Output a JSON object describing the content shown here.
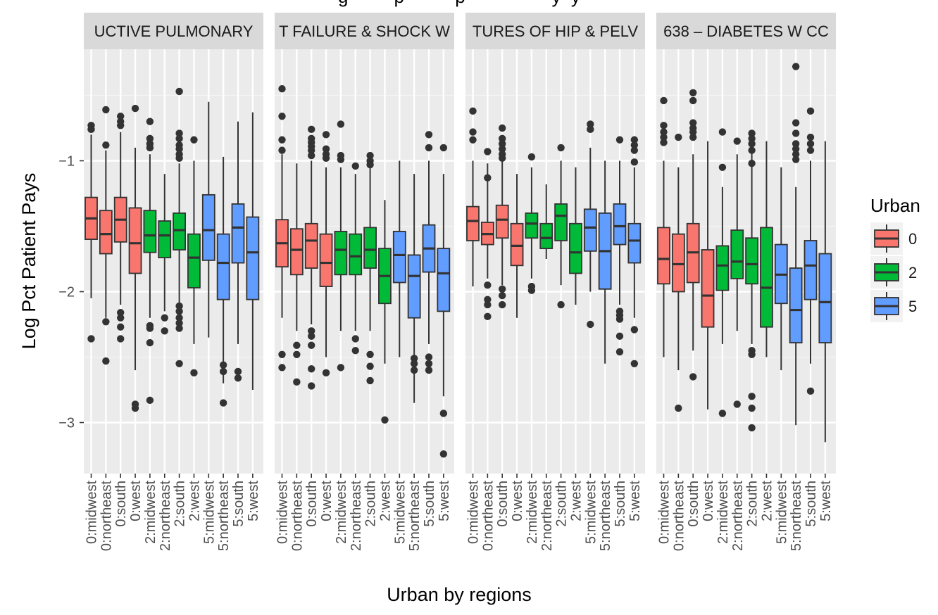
{
  "chart_data": {
    "type": "boxplot",
    "title": "g         p          p                 y  y",
    "xlabel": "Urban by regions",
    "ylabel": "Log Pct Patient Pays",
    "y_ticks": [
      -1,
      -2,
      -3
    ],
    "y_tick_labels": [
      "−1",
      "−2",
      "−3"
    ],
    "ylim": [
      -3.4,
      -0.2
    ],
    "grid": true,
    "legend": {
      "title": "Urban",
      "position": "right",
      "entries": [
        {
          "label": "0",
          "color": "#f8766d"
        },
        {
          "label": "2",
          "color": "#00ba38"
        },
        {
          "label": "5",
          "color": "#619cff"
        }
      ]
    },
    "categories": [
      "0:midwest",
      "0:northeast",
      "0:south",
      "0:west",
      "2:midwest",
      "2:northeast",
      "2:south",
      "2:west",
      "5:midwest",
      "5:northeast",
      "5:south",
      "5:west"
    ],
    "category_urban": [
      "0",
      "0",
      "0",
      "0",
      "2",
      "2",
      "2",
      "2",
      "5",
      "5",
      "5",
      "5"
    ],
    "facets": [
      {
        "label": "UCTIVE PULMONARY",
        "boxes": [
          {
            "lw": -2.05,
            "q1": -1.6,
            "med": -1.44,
            "q3": -1.28,
            "uw": -0.8,
            "out": [
              -0.73,
              -0.76,
              -2.36
            ]
          },
          {
            "lw": -2.2,
            "q1": -1.71,
            "med": -1.56,
            "q3": -1.38,
            "uw": -0.92,
            "out": [
              -0.61,
              -0.88,
              -2.23,
              -2.53
            ]
          },
          {
            "lw": -2.1,
            "q1": -1.62,
            "med": -1.45,
            "q3": -1.28,
            "uw": -0.78,
            "out": [
              -0.66,
              -0.7,
              -0.73,
              -2.16,
              -2.2,
              -2.27,
              -2.36
            ]
          },
          {
            "lw": -2.6,
            "q1": -1.86,
            "med": -1.63,
            "q3": -1.36,
            "uw": -0.9,
            "out": [
              -0.6,
              -2.86,
              -2.89
            ]
          },
          {
            "lw": -2.2,
            "q1": -1.7,
            "med": -1.57,
            "q3": -1.38,
            "uw": -0.95,
            "out": [
              -0.7,
              -0.83,
              -0.87,
              -0.9,
              -2.26,
              -2.28,
              -2.39,
              -2.83
            ]
          },
          {
            "lw": -2.15,
            "q1": -1.74,
            "med": -1.57,
            "q3": -1.46,
            "uw": -1.1,
            "out": [
              -2.2,
              -2.3
            ]
          },
          {
            "lw": -2.1,
            "q1": -1.68,
            "med": -1.53,
            "q3": -1.4,
            "uw": -1.02,
            "out": [
              -0.47,
              -0.79,
              -0.83,
              -0.88,
              -0.91,
              -0.95,
              -0.98,
              -2.11,
              -2.15,
              -2.2,
              -2.24,
              -2.28,
              -2.55
            ]
          },
          {
            "lw": -2.4,
            "q1": -1.97,
            "med": -1.74,
            "q3": -1.56,
            "uw": -1.0,
            "out": [
              -0.84,
              -2.62
            ]
          },
          {
            "lw": -2.35,
            "q1": -1.76,
            "med": -1.53,
            "q3": -1.26,
            "uw": -0.55,
            "out": []
          },
          {
            "lw": -2.7,
            "q1": -2.06,
            "med": -1.78,
            "q3": -1.56,
            "uw": -0.97,
            "out": [
              -2.56,
              -2.61,
              -2.85
            ]
          },
          {
            "lw": -2.4,
            "q1": -1.78,
            "med": -1.51,
            "q3": -1.33,
            "uw": -0.7,
            "out": [
              -2.61,
              -2.66
            ]
          },
          {
            "lw": -2.75,
            "q1": -2.06,
            "med": -1.7,
            "q3": -1.43,
            "uw": -0.63,
            "out": []
          }
        ]
      },
      {
        "label": "T FAILURE & SHOCK W",
        "boxes": [
          {
            "lw": -2.2,
            "q1": -1.81,
            "med": -1.63,
            "q3": -1.45,
            "uw": -0.95,
            "out": [
              -0.45,
              -0.66,
              -0.84,
              -0.92,
              -2.48,
              -2.58
            ]
          },
          {
            "lw": -2.3,
            "q1": -1.87,
            "med": -1.68,
            "q3": -1.52,
            "uw": -1.02,
            "out": [
              -2.41,
              -2.48,
              -2.69
            ]
          },
          {
            "lw": -2.25,
            "q1": -1.82,
            "med": -1.61,
            "q3": -1.48,
            "uw": -1.0,
            "out": [
              -0.76,
              -0.83,
              -0.86,
              -0.89,
              -0.92,
              -0.96,
              -2.3,
              -2.34,
              -2.41,
              -2.59,
              -2.72
            ]
          },
          {
            "lw": -2.5,
            "q1": -1.96,
            "med": -1.78,
            "q3": -1.56,
            "uw": -1.05,
            "out": [
              -0.8,
              -0.91,
              -0.95,
              -0.98,
              -2.62
            ]
          },
          {
            "lw": -2.3,
            "q1": -1.87,
            "med": -1.68,
            "q3": -1.54,
            "uw": -1.05,
            "out": [
              -0.96,
              -0.99,
              -0.72,
              -2.58
            ]
          },
          {
            "lw": -2.3,
            "q1": -1.87,
            "med": -1.73,
            "q3": -1.56,
            "uw": -1.1,
            "out": [
              -1.04,
              -2.36,
              -2.45
            ]
          },
          {
            "lw": -2.3,
            "q1": -1.82,
            "med": -1.68,
            "q3": -1.51,
            "uw": -1.05,
            "out": [
              -0.96,
              -1.0,
              -1.03,
              -2.48,
              -2.57,
              -2.68
            ]
          },
          {
            "lw": -2.55,
            "q1": -2.09,
            "med": -1.88,
            "q3": -1.67,
            "uw": -1.3,
            "out": [
              -2.98
            ]
          },
          {
            "lw": -2.5,
            "q1": -1.93,
            "med": -1.72,
            "q3": -1.54,
            "uw": -1.0,
            "out": []
          },
          {
            "lw": -2.85,
            "q1": -2.2,
            "med": -1.88,
            "q3": -1.72,
            "uw": -1.1,
            "out": [
              -2.51,
              -2.55,
              -2.6
            ]
          },
          {
            "lw": -2.4,
            "q1": -1.85,
            "med": -1.67,
            "q3": -1.49,
            "uw": -1.0,
            "out": [
              -0.8,
              -0.9,
              -2.5,
              -2.55,
              -2.6
            ]
          },
          {
            "lw": -2.8,
            "q1": -2.15,
            "med": -1.86,
            "q3": -1.67,
            "uw": -1.1,
            "out": [
              -0.9,
              -2.93,
              -3.24
            ]
          }
        ]
      },
      {
        "label": "TURES OF HIP & PELV",
        "boxes": [
          {
            "lw": -1.96,
            "q1": -1.61,
            "med": -1.46,
            "q3": -1.35,
            "uw": -1.0,
            "out": [
              -0.62,
              -0.78,
              -0.84
            ]
          },
          {
            "lw": -1.9,
            "q1": -1.64,
            "med": -1.56,
            "q3": -1.47,
            "uw": -1.02,
            "out": [
              -0.93,
              -1.13,
              -1.95,
              -2.06,
              -2.1,
              -2.19
            ]
          },
          {
            "lw": -1.95,
            "q1": -1.59,
            "med": -1.45,
            "q3": -1.34,
            "uw": -1.0,
            "out": [
              -0.75,
              -0.83,
              -0.87,
              -0.91,
              -0.95,
              -0.98,
              -1.98,
              -2.03,
              -2.1
            ]
          },
          {
            "lw": -2.2,
            "q1": -1.8,
            "med": -1.65,
            "q3": -1.48,
            "uw": -1.1,
            "out": []
          },
          {
            "lw": -1.9,
            "q1": -1.59,
            "med": -1.48,
            "q3": -1.4,
            "uw": -1.05,
            "out": [
              -0.97,
              -1.96,
              -1.99
            ]
          },
          {
            "lw": -1.75,
            "q1": -1.67,
            "med": -1.59,
            "q3": -1.48,
            "uw": -1.18,
            "out": []
          },
          {
            "lw": -1.95,
            "q1": -1.61,
            "med": -1.42,
            "q3": -1.33,
            "uw": -1.0,
            "out": [
              -0.9,
              -2.1
            ]
          },
          {
            "lw": -2.1,
            "q1": -1.86,
            "med": -1.7,
            "q3": -1.48,
            "uw": -1.05,
            "out": []
          },
          {
            "lw": -2.0,
            "q1": -1.69,
            "med": -1.51,
            "q3": -1.37,
            "uw": -0.9,
            "out": [
              -0.72,
              -0.76,
              -2.25
            ]
          },
          {
            "lw": -2.55,
            "q1": -1.98,
            "med": -1.69,
            "q3": -1.4,
            "uw": -1.0,
            "out": []
          },
          {
            "lw": -2.1,
            "q1": -1.64,
            "med": -1.5,
            "q3": -1.33,
            "uw": -1.0,
            "out": [
              -0.84,
              -2.15,
              -2.18,
              -2.21,
              -2.34,
              -2.46
            ]
          },
          {
            "lw": -2.2,
            "q1": -1.78,
            "med": -1.61,
            "q3": -1.48,
            "uw": -1.05,
            "out": [
              -0.84,
              -0.88,
              -0.92,
              -1.01,
              -2.29,
              -2.55
            ]
          }
        ]
      },
      {
        "label": "638 – DIABETES W CC",
        "boxes": [
          {
            "lw": -2.5,
            "q1": -1.94,
            "med": -1.75,
            "q3": -1.51,
            "uw": -1.0,
            "out": [
              -0.54,
              -0.73,
              -0.78,
              -0.82,
              -0.86
            ]
          },
          {
            "lw": -2.6,
            "q1": -2.0,
            "med": -1.79,
            "q3": -1.56,
            "uw": -1.05,
            "out": [
              -0.82,
              -2.89
            ]
          },
          {
            "lw": -2.45,
            "q1": -1.93,
            "med": -1.7,
            "q3": -1.48,
            "uw": -0.95,
            "out": [
              -0.48,
              -0.54,
              -0.71,
              -0.75,
              -0.78,
              -0.82,
              -2.65
            ]
          },
          {
            "lw": -2.9,
            "q1": -2.27,
            "med": -2.03,
            "q3": -1.68,
            "uw": -0.85,
            "out": []
          },
          {
            "lw": -2.4,
            "q1": -1.99,
            "med": -1.8,
            "q3": -1.65,
            "uw": -1.2,
            "out": [
              -0.78,
              -1.05,
              -2.93
            ]
          },
          {
            "lw": -2.3,
            "q1": -1.9,
            "med": -1.77,
            "q3": -1.53,
            "uw": -0.95,
            "out": [
              -0.85,
              -2.86
            ]
          },
          {
            "lw": -2.4,
            "q1": -1.94,
            "med": -1.79,
            "q3": -1.59,
            "uw": -0.9,
            "out": [
              -0.79,
              -0.83,
              -0.87,
              -0.92,
              -1.02,
              -2.45,
              -2.48,
              -2.8,
              -2.89,
              -3.04
            ]
          },
          {
            "lw": -2.5,
            "q1": -2.27,
            "med": -1.97,
            "q3": -1.51,
            "uw": -0.85,
            "out": []
          },
          {
            "lw": -2.6,
            "q1": -2.09,
            "med": -1.87,
            "q3": -1.64,
            "uw": -1.05,
            "out": []
          },
          {
            "lw": -3.02,
            "q1": -2.39,
            "med": -2.14,
            "q3": -1.82,
            "uw": -1.2,
            "out": [
              -0.28,
              -0.71,
              -0.79,
              -0.87,
              -0.91,
              -0.95,
              -0.99
            ]
          },
          {
            "lw": -2.55,
            "q1": -2.06,
            "med": -1.8,
            "q3": -1.61,
            "uw": -1.0,
            "out": [
              -0.62,
              -0.82,
              -0.87,
              -0.92,
              -2.76
            ]
          },
          {
            "lw": -3.15,
            "q1": -2.39,
            "med": -2.08,
            "q3": -1.71,
            "uw": -0.85,
            "out": []
          }
        ]
      }
    ]
  }
}
